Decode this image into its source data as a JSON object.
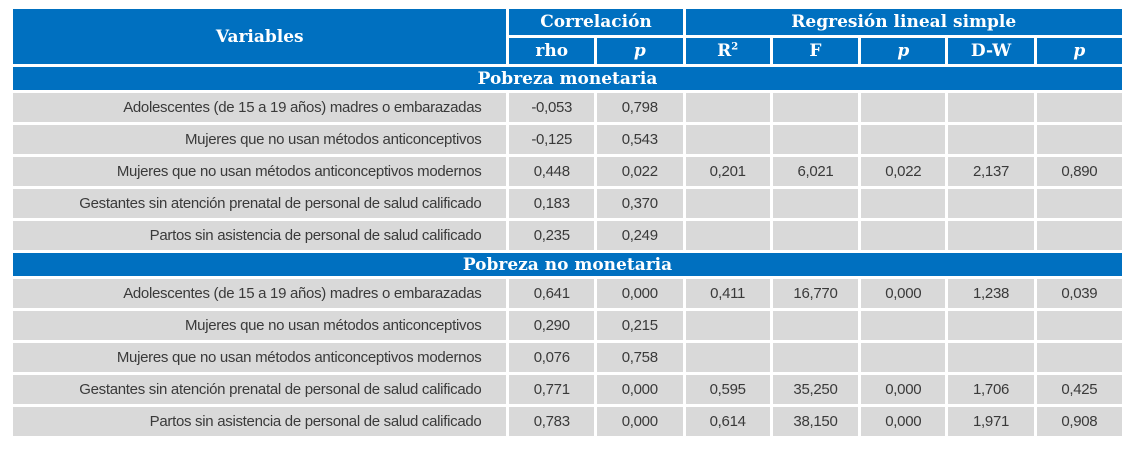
{
  "header": {
    "variables": "Variables",
    "correlacion": "Correlación",
    "regresion": "Regresión lineal simple",
    "rho": "rho",
    "p1": "p",
    "r2_base": "R",
    "r2_sup": "2",
    "f": "F",
    "p2": "p",
    "dw": "D-W",
    "p3": "p"
  },
  "sections": [
    {
      "title": "Pobreza monetaria",
      "rows": [
        {
          "label": "Adolescentes (de 15 a 19 años) madres o embarazadas",
          "rho": "-0,053",
          "p": "0,798",
          "r2": "",
          "f": "",
          "p_reg": "",
          "dw": "",
          "p_dw": ""
        },
        {
          "label": "Mujeres que no usan métodos anticonceptivos",
          "rho": "-0,125",
          "p": "0,543",
          "r2": "",
          "f": "",
          "p_reg": "",
          "dw": "",
          "p_dw": ""
        },
        {
          "label": "Mujeres que no usan métodos anticonceptivos modernos",
          "rho": "0,448",
          "p": "0,022",
          "r2": "0,201",
          "f": "6,021",
          "p_reg": "0,022",
          "dw": "2,137",
          "p_dw": "0,890"
        },
        {
          "label": "Gestantes sin atención prenatal de personal de salud calificado",
          "rho": "0,183",
          "p": "0,370",
          "r2": "",
          "f": "",
          "p_reg": "",
          "dw": "",
          "p_dw": ""
        },
        {
          "label": "Partos sin asistencia de personal de salud calificado",
          "rho": "0,235",
          "p": "0,249",
          "r2": "",
          "f": "",
          "p_reg": "",
          "dw": "",
          "p_dw": ""
        }
      ]
    },
    {
      "title": "Pobreza no monetaria",
      "rows": [
        {
          "label": "Adolescentes (de 15 a 19 años) madres o embarazadas",
          "rho": "0,641",
          "p": "0,000",
          "r2": "0,411",
          "f": "16,770",
          "p_reg": "0,000",
          "dw": "1,238",
          "p_dw": "0,039"
        },
        {
          "label": "Mujeres que no usan métodos anticonceptivos",
          "rho": "0,290",
          "p": "0,215",
          "r2": "",
          "f": "",
          "p_reg": "",
          "dw": "",
          "p_dw": ""
        },
        {
          "label": "Mujeres que no usan métodos anticonceptivos modernos",
          "rho": "0,076",
          "p": "0,758",
          "r2": "",
          "f": "",
          "p_reg": "",
          "dw": "",
          "p_dw": ""
        },
        {
          "label": "Gestantes sin atención prenatal de personal de salud calificado",
          "rho": "0,771",
          "p": "0,000",
          "r2": "0,595",
          "f": "35,250",
          "p_reg": "0,000",
          "dw": "1,706",
          "p_dw": "0,425"
        },
        {
          "label": "Partos sin asistencia de personal de salud calificado",
          "rho": "0,783",
          "p": "0,000",
          "r2": "0,614",
          "f": "38,150",
          "p_reg": "0,000",
          "dw": "1,971",
          "p_dw": "0,908"
        }
      ]
    }
  ]
}
